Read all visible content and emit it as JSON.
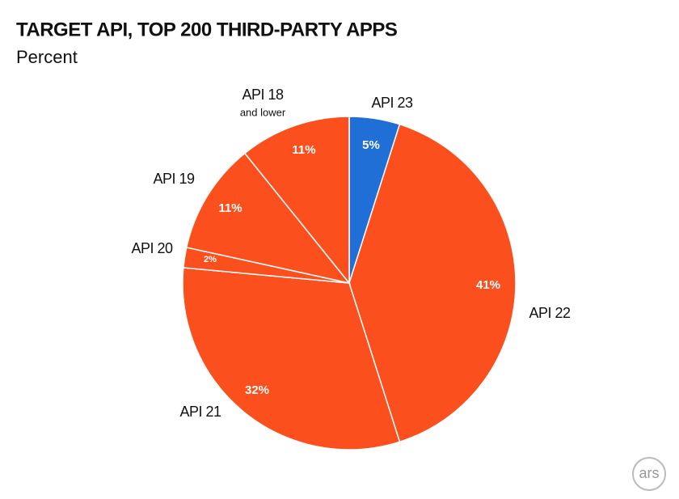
{
  "chart_data": {
    "type": "pie",
    "title": "TARGET API, TOP 200 THIRD-PARTY APPS",
    "subtitle": "Percent",
    "categories": [
      "API 23",
      "API 22",
      "API 21",
      "API 20",
      "API 19",
      "API 18"
    ],
    "annotation": "and lower",
    "values": [
      5,
      41,
      32,
      2,
      11,
      11
    ],
    "value_labels": [
      "5%",
      "41%",
      "32%",
      "2%",
      "11%",
      "11%"
    ],
    "colors": [
      "#1f6fd6",
      "#fb4f1e",
      "#fb4f1e",
      "#fb4f1e",
      "#fb4f1e",
      "#fb4f1e"
    ],
    "logo": "ars"
  }
}
